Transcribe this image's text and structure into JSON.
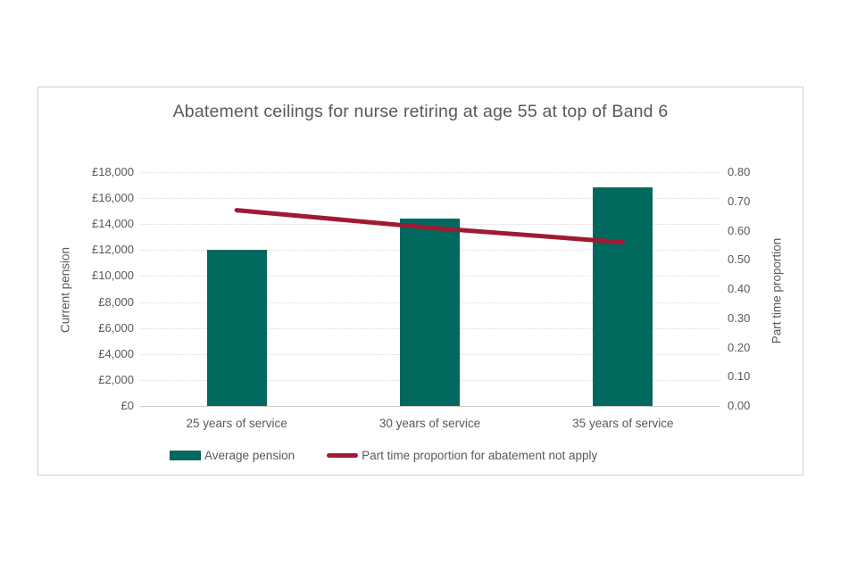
{
  "chart_data": {
    "type": "combo-bar-line",
    "title": "Abatement ceilings for nurse retiring at age 55 at top of Band 6",
    "categories": [
      "25 years of service",
      "30 years of service",
      "35 years of service"
    ],
    "series": [
      {
        "name": "Average pension",
        "type": "bar",
        "axis": "left",
        "color": "#01685E",
        "values": [
          12000,
          14400,
          16800
        ]
      },
      {
        "name": "Part time proportion for abatement not apply",
        "type": "line",
        "axis": "right",
        "color": "#9E1B32",
        "values": [
          0.67,
          0.61,
          0.56
        ]
      }
    ],
    "left_axis": {
      "title": "Current pension",
      "min": 0,
      "max": 18000,
      "step": 2000,
      "tick_labels": [
        "£18,000",
        "£16,000",
        "£14,000",
        "£12,000",
        "£10,000",
        "£8,000",
        "£6,000",
        "£4,000",
        "£2,000",
        "£0"
      ]
    },
    "right_axis": {
      "title": "Part time proportion",
      "min": 0,
      "max": 0.8,
      "step": 0.1,
      "tick_labels": [
        "0.80",
        "0.70",
        "0.60",
        "0.50",
        "0.40",
        "0.30",
        "0.20",
        "0.10",
        "0.00"
      ]
    },
    "legend_position": "bottom",
    "grid": "horizontal-dotted"
  },
  "colors": {
    "text": "#595959",
    "gridline": "#D9D9D9",
    "axis_line": "#C8C8C8",
    "chart_border": "#D0D0D0",
    "background": "#FFFFFF"
  }
}
